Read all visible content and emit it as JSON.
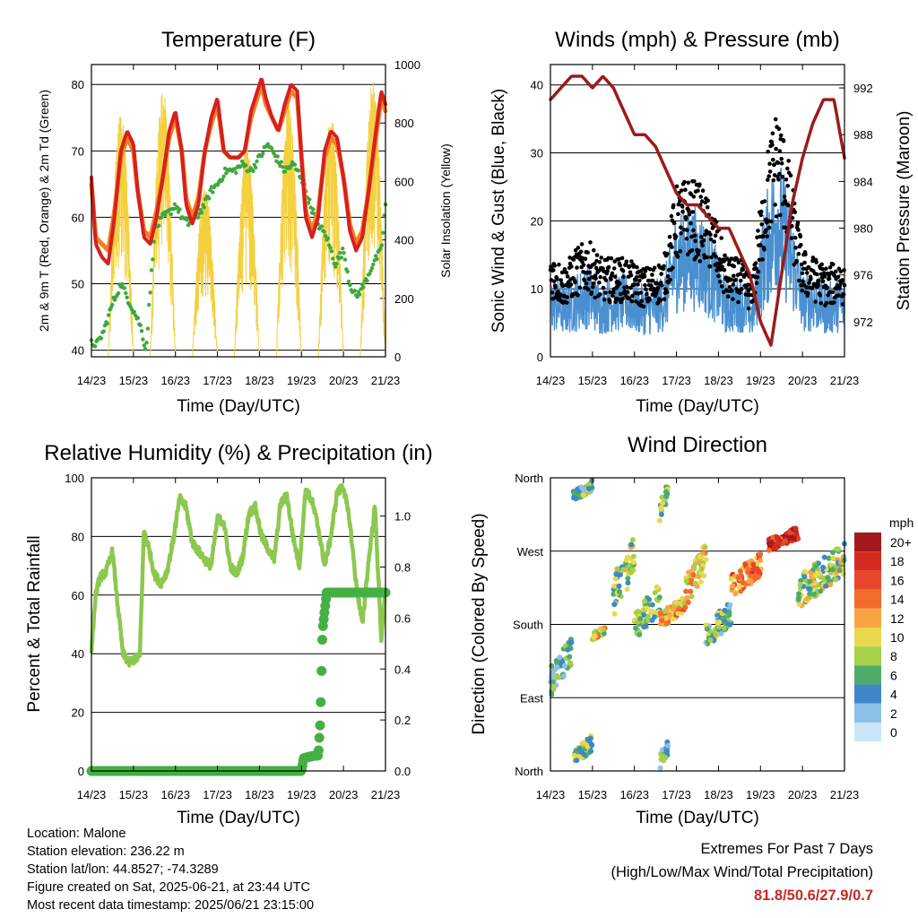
{
  "info": {
    "location": "Location: Malone",
    "elevation": "Station elevation: 236.22 m",
    "latlon": "Station lat/lon: 44.8527; -74.3289",
    "created": "Figure created on Sat, 2025-06-21, at 23:44 UTC",
    "recent": "Most recent data timestamp: 2025/06/21 23:15:00"
  },
  "extremes": {
    "title": "Extremes For Past 7 Days",
    "subtitle": "(High/Low/Max Wind/Total Precipitation)",
    "values": "81.8/50.6/27.9/0.7",
    "value_color": "#c62828"
  },
  "x_ticks": [
    "14/23",
    "15/23",
    "16/23",
    "17/23",
    "18/23",
    "19/23",
    "20/23",
    "21/23"
  ],
  "colorbar": {
    "unit": "mph",
    "labels": [
      "20+",
      "18",
      "16",
      "14",
      "12",
      "10",
      "8",
      "6",
      "4",
      "2",
      "0"
    ],
    "colors": [
      "#a3191c",
      "#d42a20",
      "#e8462a",
      "#f36b2b",
      "#f9a443",
      "#e9d84b",
      "#a6cf4a",
      "#4dac6b",
      "#3e88c7",
      "#8dc0e6",
      "#c8e6f8"
    ]
  },
  "chart_data": [
    {
      "type": "line",
      "title": "Temperature (F)",
      "xlabel": "Time (Day/UTC)",
      "ylabel": "2m & 9m T (Red, Orange) & 2m Td (Green)",
      "ylabel_right": "Solar Insolation (Yellow)",
      "xlim": [
        0,
        7
      ],
      "ylim": [
        39,
        83
      ],
      "yticks": [
        40,
        50,
        60,
        70,
        80
      ],
      "ylim_right": [
        0,
        1000
      ],
      "yticks_right": [
        0,
        200,
        400,
        600,
        800,
        1000
      ],
      "grid": "horizontal",
      "series": [
        {
          "color": "#d62020",
          "x": [
            0,
            0.1,
            0.25,
            0.4,
            0.55,
            0.7,
            0.85,
            1.0,
            1.1,
            1.25,
            1.4,
            1.55,
            1.7,
            1.85,
            2.0,
            2.15,
            2.25,
            2.4,
            2.55,
            2.7,
            2.85,
            3.0,
            3.15,
            3.3,
            3.5,
            3.65,
            3.8,
            3.95,
            4.05,
            4.15,
            4.3,
            4.45,
            4.6,
            4.75,
            4.9,
            5.0,
            5.1,
            5.25,
            5.4,
            5.55,
            5.7,
            5.85,
            6.0,
            6.15,
            6.3,
            6.45,
            6.6,
            6.75,
            6.9,
            7.0
          ],
          "y": [
            66,
            56,
            54,
            53,
            60,
            70,
            73,
            71,
            64,
            57,
            56,
            60,
            66,
            73,
            76,
            70,
            62,
            59,
            62,
            70,
            75,
            78,
            70,
            69,
            69,
            70,
            76,
            79,
            81,
            78,
            75,
            73,
            77,
            80,
            79,
            69,
            60,
            57,
            60,
            70,
            73,
            72,
            66,
            58,
            55,
            57,
            64,
            72,
            79,
            77
          ]
        },
        {
          "color": "#f08020",
          "x": [
            0,
            0.1,
            0.25,
            0.4,
            0.55,
            0.7,
            0.85,
            1.0,
            1.1,
            1.25,
            1.4,
            1.55,
            1.7,
            1.85,
            2.0,
            2.15,
            2.25,
            2.4,
            2.55,
            2.7,
            2.85,
            3.0,
            3.15,
            3.3,
            3.5,
            3.65,
            3.8,
            3.95,
            4.05,
            4.15,
            4.3,
            4.45,
            4.6,
            4.75,
            4.9,
            5.0,
            5.1,
            5.25,
            5.4,
            5.55,
            5.7,
            5.85,
            6.0,
            6.15,
            6.3,
            6.45,
            6.6,
            6.75,
            6.9,
            7.0
          ],
          "y": [
            65,
            57,
            56,
            55,
            61,
            69,
            72,
            70,
            64,
            58,
            57,
            61,
            66,
            72,
            75,
            70,
            63,
            60,
            63,
            70,
            74,
            77,
            70,
            69,
            69,
            70,
            75,
            78,
            80,
            77,
            75,
            73,
            76,
            79,
            78,
            69,
            61,
            58,
            61,
            69,
            72,
            71,
            66,
            59,
            56,
            58,
            64,
            71,
            78,
            76
          ]
        },
        {
          "color": "#3ea83e",
          "x": [
            0,
            0.15,
            0.3,
            0.5,
            0.7,
            0.85,
            1.0,
            1.15,
            1.3,
            1.5,
            1.7,
            1.9,
            2.0,
            2.15,
            2.3,
            2.5,
            2.7,
            2.85,
            3.0,
            3.2,
            3.4,
            3.6,
            3.8,
            4.0,
            4.2,
            4.4,
            4.6,
            4.8,
            5.0,
            5.2,
            5.4,
            5.6,
            5.8,
            6.0,
            6.15,
            6.3,
            6.5,
            6.7,
            6.9,
            7.0
          ],
          "y": [
            41,
            41,
            43,
            47,
            50,
            48,
            46,
            44,
            40,
            58,
            60,
            61,
            62,
            60,
            59,
            60,
            62,
            64,
            65,
            67,
            67,
            68,
            67,
            69,
            71,
            69,
            67,
            68,
            66,
            62,
            59,
            57,
            53,
            55,
            50,
            48,
            50,
            53,
            55,
            62
          ]
        }
      ],
      "solar_peaks": [
        {
          "x": 0.7,
          "v": 830
        },
        {
          "x": 1.7,
          "v": 920
        },
        {
          "x": 2.7,
          "v": 580
        },
        {
          "x": 3.7,
          "v": 720
        },
        {
          "x": 4.7,
          "v": 860
        },
        {
          "x": 5.7,
          "v": 830
        },
        {
          "x": 6.7,
          "v": 950
        }
      ]
    },
    {
      "type": "line",
      "title": "Winds (mph) & Pressure (mb)",
      "xlabel": "Time (Day/UTC)",
      "ylabel": "Sonic Wind & Gust (Blue, Black)",
      "ylabel_right": "Station Pressure (Maroon)",
      "xlim": [
        0,
        7
      ],
      "ylim": [
        0,
        43
      ],
      "yticks": [
        0,
        10,
        20,
        30,
        40
      ],
      "ylim_right": [
        969,
        994
      ],
      "yticks_right": [
        972,
        976,
        980,
        984,
        988,
        992
      ],
      "grid": "horizontal",
      "wind_mean": {
        "x": [
          0,
          0.3,
          0.6,
          0.9,
          1.2,
          1.5,
          1.8,
          2.1,
          2.4,
          2.7,
          3.0,
          3.3,
          3.6,
          3.9,
          4.2,
          4.5,
          4.8,
          5.0,
          5.2,
          5.4,
          5.6,
          5.8,
          6.0,
          6.3,
          6.6,
          6.9,
          7.0
        ],
        "y": [
          8,
          7,
          8,
          9,
          7,
          8,
          8,
          7,
          7,
          8,
          14,
          15,
          14,
          11,
          7,
          8,
          6,
          12,
          17,
          20,
          17,
          13,
          8,
          8,
          7,
          8,
          7
        ]
      },
      "gust_mean": {
        "x": [
          0,
          0.3,
          0.6,
          0.9,
          1.2,
          1.5,
          1.8,
          2.1,
          2.4,
          2.7,
          3.0,
          3.3,
          3.6,
          3.9,
          4.2,
          4.5,
          4.8,
          5.0,
          5.2,
          5.4,
          5.6,
          5.8,
          6.0,
          6.3,
          6.6,
          6.9,
          7.0
        ],
        "y": [
          12,
          10,
          12,
          13,
          11,
          11,
          11,
          10,
          10,
          11,
          19,
          20,
          19,
          16,
          11,
          11,
          9,
          17,
          24,
          28,
          24,
          18,
          12,
          11,
          10,
          11,
          10
        ]
      },
      "pressure": {
        "color": "#9b1b1b",
        "x": [
          0,
          0.25,
          0.5,
          0.75,
          1.0,
          1.25,
          1.5,
          1.75,
          2.0,
          2.25,
          2.5,
          2.75,
          3.0,
          3.25,
          3.5,
          3.75,
          4.0,
          4.25,
          4.5,
          4.75,
          5.0,
          5.25,
          5.5,
          5.75,
          6.0,
          6.25,
          6.5,
          6.75,
          7.0
        ],
        "y": [
          991,
          992,
          993,
          993,
          992,
          993,
          992,
          990,
          988,
          988,
          987,
          985,
          983,
          982,
          982,
          981,
          980,
          980,
          978,
          976,
          972,
          970,
          976,
          982,
          986,
          989,
          991,
          991,
          986
        ]
      }
    },
    {
      "type": "line",
      "title": "Relative Humidity (%) & Precipitation (in)",
      "xlabel": "Time (Day/UTC)",
      "ylabel": "Percent & Total Rainfall",
      "xlim": [
        0,
        7
      ],
      "ylim": [
        0,
        100
      ],
      "yticks": [
        0,
        20,
        40,
        60,
        80,
        100
      ],
      "ylim_right": [
        0,
        1.15
      ],
      "yticks_right": [
        0.0,
        0.2,
        0.4,
        0.6,
        0.8,
        1.0
      ],
      "grid": "horizontal",
      "series": [
        {
          "name": "RH",
          "color": "#8cc850",
          "x": [
            0,
            0.1,
            0.2,
            0.35,
            0.5,
            0.6,
            0.75,
            0.9,
            1.0,
            1.15,
            1.25,
            1.35,
            1.5,
            1.65,
            1.8,
            1.95,
            2.1,
            2.25,
            2.4,
            2.55,
            2.7,
            2.85,
            3.0,
            3.15,
            3.3,
            3.45,
            3.6,
            3.75,
            3.9,
            4.05,
            4.2,
            4.35,
            4.5,
            4.65,
            4.8,
            4.95,
            5.1,
            5.25,
            5.4,
            5.55,
            5.7,
            5.85,
            6.0,
            6.15,
            6.3,
            6.45,
            6.6,
            6.75,
            6.9,
            7.0
          ],
          "y": [
            41,
            60,
            66,
            68,
            75,
            60,
            40,
            37,
            38,
            39,
            82,
            77,
            67,
            64,
            68,
            79,
            93,
            90,
            78,
            75,
            72,
            70,
            86,
            85,
            70,
            67,
            73,
            88,
            90,
            80,
            76,
            72,
            91,
            94,
            80,
            70,
            96,
            92,
            83,
            70,
            80,
            95,
            97,
            85,
            64,
            50,
            72,
            90,
            45,
            62
          ]
        },
        {
          "name": "Precip",
          "color": "#44b044",
          "x": [
            0,
            1,
            2,
            3,
            4,
            5.0,
            5.05,
            5.3,
            5.4,
            5.45,
            5.5,
            5.6,
            6,
            7
          ],
          "y": [
            0,
            0,
            0,
            0,
            0,
            0,
            0.05,
            0.06,
            0.06,
            0.2,
            0.55,
            0.7,
            0.7,
            0.7
          ]
        }
      ]
    },
    {
      "type": "scatter",
      "title": "Wind Direction",
      "xlabel": "Time (Day/UTC)",
      "ylabel": "Direction (Colored By Speed)",
      "xlim": [
        0,
        7
      ],
      "ylim": [
        0,
        360
      ],
      "yticks": [
        "North",
        "East",
        "South",
        "West",
        "North"
      ],
      "grid": "horizontal",
      "clusters": [
        {
          "x": [
            0.0,
            0.5
          ],
          "dir": [
            90,
            165
          ],
          "spd": 5
        },
        {
          "x": [
            0.55,
            1.0
          ],
          "dir": [
            5,
            45
          ],
          "spd": 7
        },
        {
          "x": [
            0.55,
            1.0
          ],
          "dir": [
            330,
            358
          ],
          "spd": 6
        },
        {
          "x": [
            1.0,
            1.3
          ],
          "dir": [
            160,
            178
          ],
          "spd": 10
        },
        {
          "x": [
            1.5,
            2.0
          ],
          "dir": [
            190,
            290
          ],
          "spd": 8
        },
        {
          "x": [
            2.0,
            2.6
          ],
          "dir": [
            160,
            230
          ],
          "spd": 7
        },
        {
          "x": [
            2.6,
            3.2
          ],
          "dir": [
            175,
            215
          ],
          "spd": 12
        },
        {
          "x": [
            3.2,
            3.7
          ],
          "dir": [
            200,
            280
          ],
          "spd": 11
        },
        {
          "x": [
            3.7,
            4.3
          ],
          "dir": [
            150,
            210
          ],
          "spd": 6
        },
        {
          "x": [
            4.3,
            5.0
          ],
          "dir": [
            210,
            270
          ],
          "spd": 14
        },
        {
          "x": [
            5.2,
            5.9
          ],
          "dir": [
            270,
            300
          ],
          "spd": 18
        },
        {
          "x": [
            5.9,
            7.0
          ],
          "dir": [
            200,
            280
          ],
          "spd": 8
        },
        {
          "x": [
            2.6,
            2.8
          ],
          "dir": [
            0,
            40
          ],
          "spd": 5
        },
        {
          "x": [
            2.6,
            2.8
          ],
          "dir": [
            300,
            358
          ],
          "spd": 6
        }
      ]
    }
  ]
}
